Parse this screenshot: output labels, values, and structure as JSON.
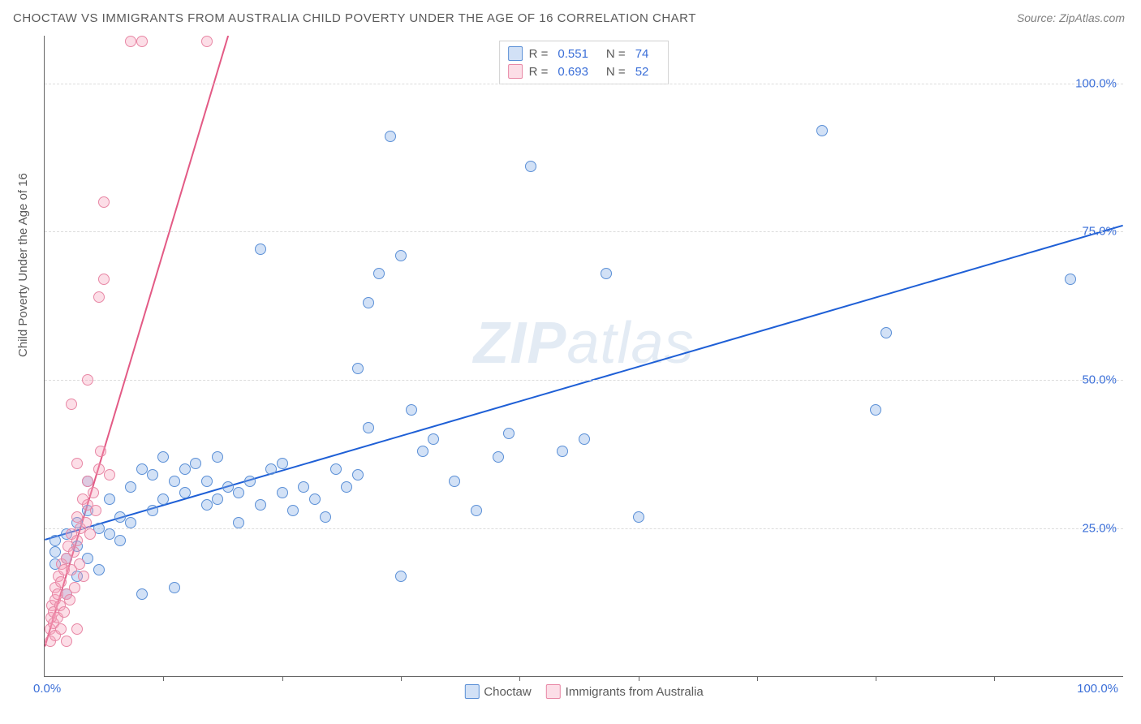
{
  "title": "CHOCTAW VS IMMIGRANTS FROM AUSTRALIA CHILD POVERTY UNDER THE AGE OF 16 CORRELATION CHART",
  "source": "Source: ZipAtlas.com",
  "ylabel": "Child Poverty Under the Age of 16",
  "watermark_bold": "ZIP",
  "watermark_rest": "atlas",
  "chart": {
    "type": "scatter",
    "xlim": [
      0,
      100
    ],
    "ylim": [
      0,
      108
    ],
    "grid_color": "#dcdcdc",
    "background_color": "#ffffff",
    "axis_color": "#666666",
    "yticks": [
      25,
      50,
      75,
      100
    ],
    "ytick_labels": [
      "25.0%",
      "50.0%",
      "75.0%",
      "100.0%"
    ],
    "xtick_marks": [
      11,
      22,
      33,
      44,
      55,
      66,
      77,
      88
    ],
    "xlabel_min": "0.0%",
    "xlabel_max": "100.0%",
    "marker_radius": 7,
    "marker_border_width": 1.2,
    "line_width": 2
  },
  "series": [
    {
      "name": "Choctaw",
      "fill": "rgba(125,170,230,0.35)",
      "stroke": "#5a8fd6",
      "line_color": "#1e5fd6",
      "R": "0.551",
      "N": "74",
      "regression": {
        "x1": 0,
        "y1": 23,
        "x2": 100,
        "y2": 76
      },
      "points": [
        [
          1,
          19
        ],
        [
          1,
          21
        ],
        [
          1,
          23
        ],
        [
          2,
          20
        ],
        [
          2,
          24
        ],
        [
          2,
          14
        ],
        [
          3,
          17
        ],
        [
          3,
          22
        ],
        [
          3,
          26
        ],
        [
          4,
          20
        ],
        [
          4,
          28
        ],
        [
          4,
          33
        ],
        [
          5,
          25
        ],
        [
          5,
          18
        ],
        [
          6,
          24
        ],
        [
          6,
          30
        ],
        [
          7,
          23
        ],
        [
          7,
          27
        ],
        [
          8,
          26
        ],
        [
          8,
          32
        ],
        [
          9,
          35
        ],
        [
          9,
          14
        ],
        [
          10,
          28
        ],
        [
          10,
          34
        ],
        [
          11,
          30
        ],
        [
          11,
          37
        ],
        [
          12,
          33
        ],
        [
          12,
          15
        ],
        [
          13,
          31
        ],
        [
          13,
          35
        ],
        [
          14,
          36
        ],
        [
          15,
          33
        ],
        [
          15,
          29
        ],
        [
          16,
          30
        ],
        [
          16,
          37
        ],
        [
          17,
          32
        ],
        [
          18,
          31
        ],
        [
          18,
          26
        ],
        [
          19,
          33
        ],
        [
          20,
          29
        ],
        [
          20,
          72
        ],
        [
          21,
          35
        ],
        [
          22,
          31
        ],
        [
          22,
          36
        ],
        [
          23,
          28
        ],
        [
          24,
          32
        ],
        [
          25,
          30
        ],
        [
          26,
          27
        ],
        [
          27,
          35
        ],
        [
          28,
          32
        ],
        [
          29,
          34
        ],
        [
          29,
          52
        ],
        [
          30,
          42
        ],
        [
          30,
          63
        ],
        [
          31,
          68
        ],
        [
          32,
          91
        ],
        [
          33,
          17
        ],
        [
          34,
          45
        ],
        [
          35,
          38
        ],
        [
          36,
          40
        ],
        [
          38,
          33
        ],
        [
          40,
          28
        ],
        [
          42,
          37
        ],
        [
          43,
          41
        ],
        [
          45,
          86
        ],
        [
          48,
          38
        ],
        [
          50,
          40
        ],
        [
          52,
          68
        ],
        [
          55,
          27
        ],
        [
          72,
          92
        ],
        [
          77,
          45
        ],
        [
          78,
          58
        ],
        [
          95,
          67
        ],
        [
          33,
          71
        ]
      ]
    },
    {
      "name": "Immigrants from Australia",
      "fill": "rgba(245,160,185,0.35)",
      "stroke": "#e887a5",
      "line_color": "#e35a85",
      "R": "0.693",
      "N": "52",
      "regression": {
        "x1": 0,
        "y1": 5,
        "x2": 17,
        "y2": 108
      },
      "points": [
        [
          0.5,
          6
        ],
        [
          0.5,
          8
        ],
        [
          0.6,
          10
        ],
        [
          0.7,
          12
        ],
        [
          0.8,
          9
        ],
        [
          0.8,
          11
        ],
        [
          1,
          7
        ],
        [
          1,
          13
        ],
        [
          1,
          15
        ],
        [
          1.2,
          10
        ],
        [
          1.2,
          14
        ],
        [
          1.3,
          17
        ],
        [
          1.4,
          12
        ],
        [
          1.5,
          8
        ],
        [
          1.5,
          16
        ],
        [
          1.6,
          19
        ],
        [
          1.8,
          11
        ],
        [
          1.8,
          18
        ],
        [
          2,
          14
        ],
        [
          2,
          20
        ],
        [
          2.2,
          22
        ],
        [
          2.3,
          13
        ],
        [
          2.5,
          18
        ],
        [
          2.5,
          24
        ],
        [
          2.7,
          21
        ],
        [
          2.8,
          15
        ],
        [
          3,
          23
        ],
        [
          3,
          27
        ],
        [
          3.2,
          19
        ],
        [
          3.3,
          25
        ],
        [
          3.5,
          30
        ],
        [
          3.6,
          17
        ],
        [
          3.8,
          26
        ],
        [
          4,
          29
        ],
        [
          4,
          33
        ],
        [
          4.2,
          24
        ],
        [
          4.5,
          31
        ],
        [
          4.7,
          28
        ],
        [
          5,
          35
        ],
        [
          5.2,
          38
        ],
        [
          2.5,
          46
        ],
        [
          3,
          36
        ],
        [
          4,
          50
        ],
        [
          5,
          64
        ],
        [
          5.5,
          67
        ],
        [
          5.5,
          80
        ],
        [
          6,
          34
        ],
        [
          8,
          107
        ],
        [
          9,
          107
        ],
        [
          15,
          107
        ],
        [
          2,
          6
        ],
        [
          3,
          8
        ]
      ]
    }
  ],
  "legend_top_labels": {
    "R": "R =",
    "N": "N ="
  },
  "legend_bottom": [
    "Choctaw",
    "Immigrants from Australia"
  ]
}
